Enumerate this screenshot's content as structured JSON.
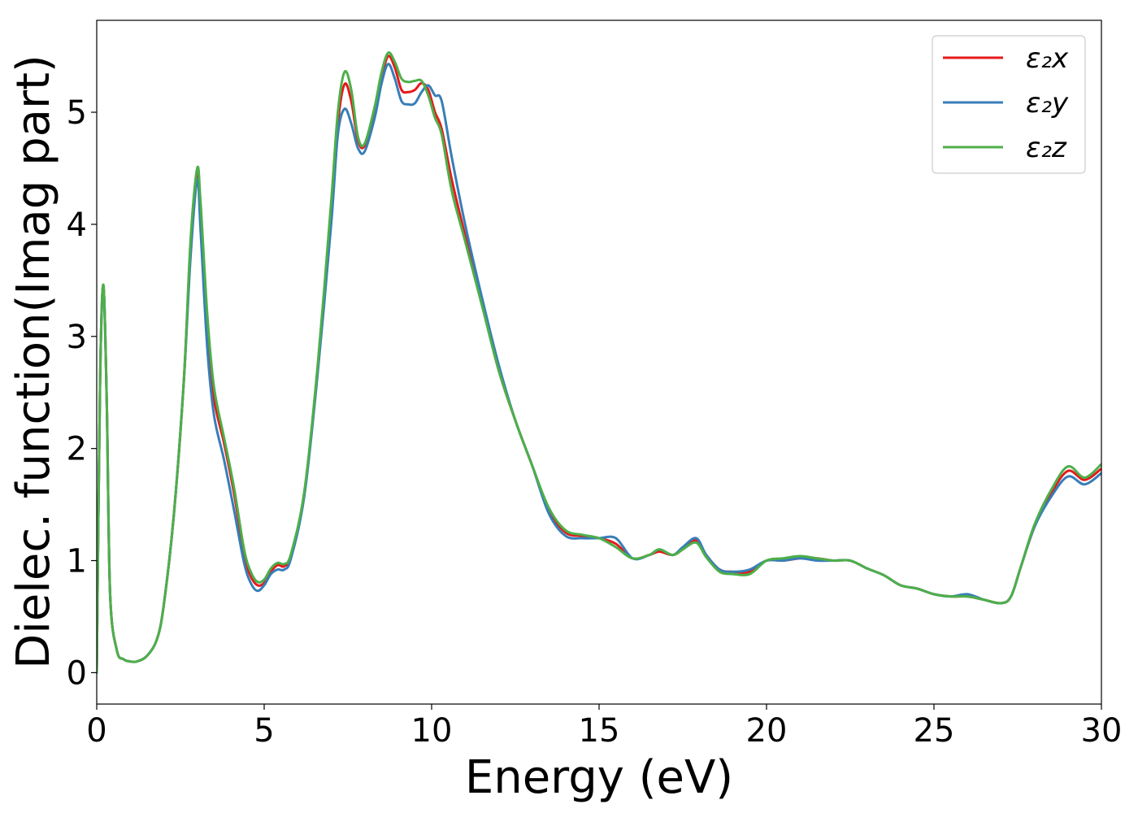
{
  "chart_data": {
    "type": "line",
    "title": "",
    "xlabel": "Energy (eV)",
    "ylabel": "Dielec. function(Imag part)",
    "xlim": [
      0,
      30
    ],
    "ylim": [
      -0.28,
      5.82
    ],
    "xticks": [
      0,
      5,
      10,
      15,
      20,
      25,
      30
    ],
    "xtick_labels": [
      "0",
      "5",
      "10",
      "15",
      "20",
      "25",
      "30"
    ],
    "yticks": [
      0,
      1,
      2,
      3,
      4,
      5
    ],
    "ytick_labels": [
      "0",
      "1",
      "2",
      "3",
      "4",
      "5"
    ],
    "grid": false,
    "legend_position": "top-right",
    "series": [
      {
        "name": "ε₂x",
        "color": "#e41a1c",
        "points": [
          [
            0,
            0
          ],
          [
            0.1,
            2.6
          ],
          [
            0.2,
            3.45
          ],
          [
            0.3,
            2.4
          ],
          [
            0.4,
            0.7
          ],
          [
            0.6,
            0.2
          ],
          [
            0.8,
            0.12
          ],
          [
            1.0,
            0.1
          ],
          [
            1.2,
            0.1
          ],
          [
            1.5,
            0.15
          ],
          [
            1.8,
            0.3
          ],
          [
            2.0,
            0.6
          ],
          [
            2.3,
            1.4
          ],
          [
            2.6,
            2.6
          ],
          [
            2.8,
            3.8
          ],
          [
            3.0,
            4.45
          ],
          [
            3.1,
            4.1
          ],
          [
            3.3,
            3.1
          ],
          [
            3.5,
            2.45
          ],
          [
            3.8,
            2.05
          ],
          [
            4.1,
            1.6
          ],
          [
            4.4,
            1.05
          ],
          [
            4.6,
            0.86
          ],
          [
            4.8,
            0.78
          ],
          [
            5.0,
            0.8
          ],
          [
            5.2,
            0.9
          ],
          [
            5.4,
            0.96
          ],
          [
            5.6,
            0.95
          ],
          [
            5.8,
            1.05
          ],
          [
            6.2,
            1.6
          ],
          [
            6.6,
            2.7
          ],
          [
            7.0,
            4.1
          ],
          [
            7.2,
            4.9
          ],
          [
            7.4,
            5.25
          ],
          [
            7.6,
            5.1
          ],
          [
            7.8,
            4.75
          ],
          [
            8.0,
            4.7
          ],
          [
            8.3,
            5.0
          ],
          [
            8.5,
            5.3
          ],
          [
            8.7,
            5.5
          ],
          [
            8.9,
            5.4
          ],
          [
            9.1,
            5.2
          ],
          [
            9.3,
            5.18
          ],
          [
            9.5,
            5.2
          ],
          [
            9.7,
            5.26
          ],
          [
            9.9,
            5.2
          ],
          [
            10.1,
            5.0
          ],
          [
            10.3,
            4.85
          ],
          [
            10.6,
            4.4
          ],
          [
            11.0,
            3.9
          ],
          [
            11.5,
            3.3
          ],
          [
            12.0,
            2.7
          ],
          [
            12.5,
            2.25
          ],
          [
            13.0,
            1.85
          ],
          [
            13.5,
            1.45
          ],
          [
            14.0,
            1.25
          ],
          [
            14.5,
            1.22
          ],
          [
            15.0,
            1.2
          ],
          [
            15.5,
            1.15
          ],
          [
            16.0,
            1.02
          ],
          [
            16.5,
            1.05
          ],
          [
            16.8,
            1.08
          ],
          [
            17.2,
            1.05
          ],
          [
            17.5,
            1.1
          ],
          [
            17.9,
            1.18
          ],
          [
            18.2,
            1.05
          ],
          [
            18.6,
            0.92
          ],
          [
            19.0,
            0.9
          ],
          [
            19.5,
            0.9
          ],
          [
            20.0,
            1.0
          ],
          [
            20.5,
            1.0
          ],
          [
            21.0,
            1.02
          ],
          [
            21.5,
            1.02
          ],
          [
            22.0,
            1.0
          ],
          [
            22.5,
            1.0
          ],
          [
            23.0,
            0.93
          ],
          [
            23.5,
            0.87
          ],
          [
            24.0,
            0.78
          ],
          [
            24.5,
            0.75
          ],
          [
            25.0,
            0.7
          ],
          [
            25.5,
            0.68
          ],
          [
            26.0,
            0.68
          ],
          [
            26.5,
            0.65
          ],
          [
            27.0,
            0.62
          ],
          [
            27.3,
            0.68
          ],
          [
            27.6,
            0.95
          ],
          [
            28.0,
            1.3
          ],
          [
            28.5,
            1.6
          ],
          [
            29.0,
            1.8
          ],
          [
            29.5,
            1.72
          ],
          [
            30.0,
            1.82
          ]
        ]
      },
      {
        "name": "ε₂y",
        "color": "#377eb8",
        "points": [
          [
            0,
            0
          ],
          [
            0.1,
            2.6
          ],
          [
            0.2,
            3.45
          ],
          [
            0.3,
            2.4
          ],
          [
            0.4,
            0.7
          ],
          [
            0.6,
            0.2
          ],
          [
            0.8,
            0.12
          ],
          [
            1.0,
            0.1
          ],
          [
            1.2,
            0.1
          ],
          [
            1.5,
            0.15
          ],
          [
            1.8,
            0.3
          ],
          [
            2.0,
            0.6
          ],
          [
            2.3,
            1.4
          ],
          [
            2.6,
            2.6
          ],
          [
            2.8,
            3.7
          ],
          [
            3.0,
            4.4
          ],
          [
            3.1,
            3.95
          ],
          [
            3.3,
            2.9
          ],
          [
            3.5,
            2.3
          ],
          [
            3.8,
            1.9
          ],
          [
            4.1,
            1.45
          ],
          [
            4.4,
            0.98
          ],
          [
            4.6,
            0.8
          ],
          [
            4.8,
            0.73
          ],
          [
            5.0,
            0.78
          ],
          [
            5.2,
            0.88
          ],
          [
            5.4,
            0.92
          ],
          [
            5.6,
            0.92
          ],
          [
            5.8,
            1.02
          ],
          [
            6.2,
            1.58
          ],
          [
            6.6,
            2.68
          ],
          [
            7.0,
            4.0
          ],
          [
            7.2,
            4.8
          ],
          [
            7.4,
            5.03
          ],
          [
            7.6,
            4.9
          ],
          [
            7.8,
            4.68
          ],
          [
            8.0,
            4.65
          ],
          [
            8.3,
            4.95
          ],
          [
            8.5,
            5.25
          ],
          [
            8.7,
            5.43
          ],
          [
            8.9,
            5.3
          ],
          [
            9.1,
            5.1
          ],
          [
            9.3,
            5.07
          ],
          [
            9.5,
            5.08
          ],
          [
            9.7,
            5.18
          ],
          [
            9.9,
            5.24
          ],
          [
            10.1,
            5.15
          ],
          [
            10.3,
            5.1
          ],
          [
            10.6,
            4.6
          ],
          [
            11.0,
            4.0
          ],
          [
            11.5,
            3.35
          ],
          [
            12.0,
            2.75
          ],
          [
            12.5,
            2.25
          ],
          [
            13.0,
            1.85
          ],
          [
            13.5,
            1.42
          ],
          [
            14.0,
            1.22
          ],
          [
            14.5,
            1.2
          ],
          [
            15.0,
            1.2
          ],
          [
            15.5,
            1.2
          ],
          [
            16.0,
            1.02
          ],
          [
            16.5,
            1.05
          ],
          [
            16.8,
            1.1
          ],
          [
            17.2,
            1.05
          ],
          [
            17.5,
            1.12
          ],
          [
            17.9,
            1.2
          ],
          [
            18.2,
            1.05
          ],
          [
            18.6,
            0.92
          ],
          [
            19.0,
            0.9
          ],
          [
            19.5,
            0.92
          ],
          [
            20.0,
            1.0
          ],
          [
            20.5,
            1.0
          ],
          [
            21.0,
            1.02
          ],
          [
            21.5,
            1.0
          ],
          [
            22.0,
            1.0
          ],
          [
            22.5,
            1.0
          ],
          [
            23.0,
            0.93
          ],
          [
            23.5,
            0.87
          ],
          [
            24.0,
            0.78
          ],
          [
            24.5,
            0.75
          ],
          [
            25.0,
            0.7
          ],
          [
            25.5,
            0.68
          ],
          [
            26.0,
            0.7
          ],
          [
            26.5,
            0.65
          ],
          [
            27.0,
            0.62
          ],
          [
            27.3,
            0.68
          ],
          [
            27.6,
            0.95
          ],
          [
            28.0,
            1.3
          ],
          [
            28.5,
            1.57
          ],
          [
            29.0,
            1.75
          ],
          [
            29.5,
            1.68
          ],
          [
            30.0,
            1.78
          ]
        ]
      },
      {
        "name": "ε₂z",
        "color": "#4daf4a",
        "points": [
          [
            0,
            0
          ],
          [
            0.1,
            2.6
          ],
          [
            0.2,
            3.46
          ],
          [
            0.3,
            2.4
          ],
          [
            0.4,
            0.7
          ],
          [
            0.6,
            0.2
          ],
          [
            0.8,
            0.12
          ],
          [
            1.0,
            0.1
          ],
          [
            1.2,
            0.1
          ],
          [
            1.5,
            0.15
          ],
          [
            1.8,
            0.3
          ],
          [
            2.0,
            0.6
          ],
          [
            2.3,
            1.4
          ],
          [
            2.6,
            2.6
          ],
          [
            2.8,
            3.85
          ],
          [
            3.0,
            4.5
          ],
          [
            3.1,
            4.2
          ],
          [
            3.3,
            3.2
          ],
          [
            3.5,
            2.55
          ],
          [
            3.8,
            2.1
          ],
          [
            4.1,
            1.65
          ],
          [
            4.4,
            1.1
          ],
          [
            4.6,
            0.9
          ],
          [
            4.8,
            0.81
          ],
          [
            5.0,
            0.83
          ],
          [
            5.2,
            0.93
          ],
          [
            5.4,
            0.98
          ],
          [
            5.6,
            0.97
          ],
          [
            5.8,
            1.06
          ],
          [
            6.2,
            1.62
          ],
          [
            6.6,
            2.75
          ],
          [
            7.0,
            4.2
          ],
          [
            7.2,
            5.0
          ],
          [
            7.4,
            5.36
          ],
          [
            7.6,
            5.2
          ],
          [
            7.8,
            4.78
          ],
          [
            8.0,
            4.72
          ],
          [
            8.3,
            5.05
          ],
          [
            8.5,
            5.35
          ],
          [
            8.7,
            5.53
          ],
          [
            8.9,
            5.45
          ],
          [
            9.1,
            5.3
          ],
          [
            9.3,
            5.27
          ],
          [
            9.5,
            5.28
          ],
          [
            9.7,
            5.28
          ],
          [
            9.9,
            5.15
          ],
          [
            10.1,
            4.95
          ],
          [
            10.3,
            4.8
          ],
          [
            10.6,
            4.3
          ],
          [
            11.0,
            3.85
          ],
          [
            11.5,
            3.28
          ],
          [
            12.0,
            2.7
          ],
          [
            12.5,
            2.25
          ],
          [
            13.0,
            1.85
          ],
          [
            13.5,
            1.47
          ],
          [
            14.0,
            1.27
          ],
          [
            14.5,
            1.23
          ],
          [
            15.0,
            1.2
          ],
          [
            15.5,
            1.12
          ],
          [
            16.0,
            1.02
          ],
          [
            16.5,
            1.05
          ],
          [
            16.8,
            1.1
          ],
          [
            17.2,
            1.05
          ],
          [
            17.5,
            1.1
          ],
          [
            17.9,
            1.16
          ],
          [
            18.2,
            1.03
          ],
          [
            18.6,
            0.9
          ],
          [
            19.0,
            0.88
          ],
          [
            19.5,
            0.88
          ],
          [
            20.0,
            1.0
          ],
          [
            20.5,
            1.02
          ],
          [
            21.0,
            1.04
          ],
          [
            21.5,
            1.02
          ],
          [
            22.0,
            1.0
          ],
          [
            22.5,
            1.0
          ],
          [
            23.0,
            0.93
          ],
          [
            23.5,
            0.87
          ],
          [
            24.0,
            0.78
          ],
          [
            24.5,
            0.75
          ],
          [
            25.0,
            0.7
          ],
          [
            25.5,
            0.68
          ],
          [
            26.0,
            0.68
          ],
          [
            26.5,
            0.65
          ],
          [
            27.0,
            0.62
          ],
          [
            27.3,
            0.68
          ],
          [
            27.6,
            0.95
          ],
          [
            28.0,
            1.32
          ],
          [
            28.5,
            1.63
          ],
          [
            29.0,
            1.84
          ],
          [
            29.5,
            1.74
          ],
          [
            30.0,
            1.86
          ]
        ]
      }
    ]
  }
}
